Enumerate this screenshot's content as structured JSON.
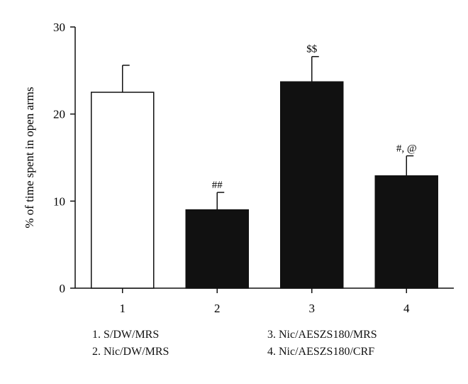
{
  "chart_data": {
    "type": "bar",
    "ylabel": "% of time spent in open arms",
    "xlabel": "",
    "ylim": [
      0,
      30
    ],
    "yticks": [
      0,
      10,
      20,
      30
    ],
    "categories": [
      "1",
      "2",
      "3",
      "4"
    ],
    "values": [
      22.5,
      9.0,
      23.7,
      12.9
    ],
    "errors": [
      3.1,
      2.0,
      2.9,
      2.3
    ],
    "annotations": [
      "",
      "##",
      "$$",
      "#, @"
    ],
    "bar_fills": [
      "#ffffff",
      "#111111",
      "#111111",
      "#111111"
    ],
    "grid": false
  },
  "legend": {
    "items": [
      "1. S/DW/MRS",
      "2. Nic/DW/MRS",
      "3. Nic/AESZS180/MRS",
      "4. Nic/AESZS180/CRF"
    ]
  }
}
